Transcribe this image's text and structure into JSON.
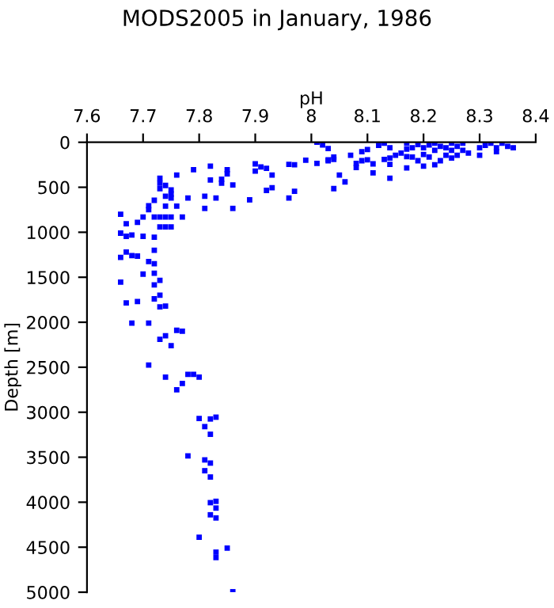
{
  "chart_data": {
    "type": "scatter",
    "title": "MODS2005 in January, 1986",
    "xlabel": "pH",
    "ylabel": "Depth [m]",
    "xlim": [
      7.6,
      8.4
    ],
    "xticks": [
      7.6,
      7.7,
      7.8,
      7.9,
      8,
      8.1,
      8.2,
      8.3,
      8.4
    ],
    "ylim": [
      5000,
      0
    ],
    "yticks": [
      0,
      500,
      1000,
      1500,
      2000,
      2500,
      3000,
      3500,
      4000,
      4500,
      5000
    ],
    "marker": "square",
    "grid": false,
    "series": [
      {
        "color": "#0000ff",
        "x": [
          8.01,
          8.02,
          8.03,
          8.03,
          8.01,
          7.99,
          7.97,
          7.96,
          7.97,
          7.96,
          7.93,
          7.92,
          7.93,
          7.92,
          7.91,
          7.9,
          7.9,
          7.89,
          7.86,
          7.86,
          7.85,
          7.85,
          7.84,
          7.84,
          7.82,
          7.82,
          7.83,
          7.81,
          7.81,
          7.79,
          7.78,
          7.77,
          7.76,
          7.76,
          7.75,
          7.75,
          7.75,
          7.75,
          7.75,
          7.74,
          7.74,
          7.74,
          7.74,
          7.74,
          7.73,
          7.73,
          7.73,
          7.73,
          7.73,
          7.72,
          7.71,
          7.71,
          7.72,
          7.7,
          7.69,
          7.67,
          7.66,
          7.66,
          7.67,
          7.68,
          7.7,
          7.72,
          7.72,
          7.67,
          7.66,
          7.68,
          7.69,
          7.71,
          7.72,
          7.7,
          7.72,
          7.73,
          7.66,
          7.72,
          7.73,
          7.72,
          7.67,
          7.69,
          7.73,
          7.74,
          7.68,
          7.71,
          7.76,
          7.77,
          7.74,
          7.73,
          7.75,
          7.71,
          7.74,
          7.78,
          7.79,
          7.8,
          7.77,
          7.76,
          7.8,
          7.82,
          7.83,
          7.81,
          7.82,
          7.78,
          7.81,
          7.82,
          7.81,
          7.82,
          7.83,
          7.82,
          7.83,
          7.82,
          7.83,
          7.8,
          7.85,
          7.83,
          7.83,
          7.86,
          8.04,
          8.04,
          8.03,
          8.05,
          8.04,
          8.06,
          8.07,
          8.08,
          8.08,
          8.09,
          8.09,
          8.1,
          8.1,
          8.11,
          8.11,
          8.12,
          8.13,
          8.13,
          8.14,
          8.14,
          8.14,
          8.14,
          8.15,
          8.16,
          8.17,
          8.17,
          8.17,
          8.17,
          8.18,
          8.18,
          8.19,
          8.19,
          8.2,
          8.2,
          8.2,
          8.21,
          8.21,
          8.22,
          8.22,
          8.22,
          8.23,
          8.23,
          8.24,
          8.24,
          8.25,
          8.25,
          8.25,
          8.26,
          8.26,
          8.27,
          8.27,
          8.28,
          8.3,
          8.3,
          8.31,
          8.32,
          8.33,
          8.33,
          8.34,
          8.35,
          8.36
        ],
        "values": [
          0,
          30,
          70,
          205,
          235,
          200,
          250,
          245,
          545,
          620,
          505,
          535,
          365,
          290,
          275,
          240,
          320,
          640,
          735,
          475,
          305,
          350,
          410,
          455,
          420,
          265,
          620,
          600,
          735,
          305,
          620,
          830,
          365,
          710,
          530,
          575,
          620,
          830,
          940,
          480,
          600,
          710,
          830,
          940,
          400,
          455,
          515,
          830,
          940,
          645,
          705,
          750,
          830,
          830,
          890,
          905,
          800,
          1010,
          1045,
          1030,
          1045,
          1055,
          1200,
          1220,
          1280,
          1260,
          1265,
          1325,
          1350,
          1465,
          1455,
          1535,
          1555,
          1585,
          1700,
          1740,
          1785,
          1770,
          1830,
          1820,
          2010,
          2010,
          2090,
          2100,
          2150,
          2190,
          2260,
          2475,
          2610,
          2580,
          2580,
          2610,
          2680,
          2750,
          3070,
          3075,
          3055,
          3160,
          3245,
          3485,
          3530,
          3565,
          3650,
          3720,
          3990,
          4005,
          4065,
          4140,
          4175,
          4390,
          4510,
          4555,
          4615,
          4995,
          165,
          190,
          195,
          365,
          515,
          440,
          145,
          235,
          280,
          205,
          105,
          80,
          195,
          240,
          340,
          35,
          10,
          190,
          60,
          175,
          400,
          245,
          145,
          120,
          10,
          75,
          160,
          285,
          60,
          165,
          25,
          205,
          60,
          135,
          265,
          30,
          165,
          10,
          90,
          250,
          45,
          205,
          60,
          145,
          10,
          90,
          175,
          45,
          145,
          10,
          90,
          120,
          60,
          145,
          35,
          10,
          60,
          105,
          10,
          45,
          60
        ]
      }
    ]
  }
}
